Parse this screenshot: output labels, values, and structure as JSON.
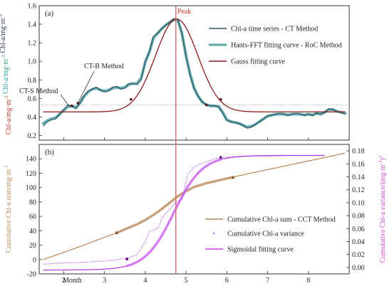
{
  "chart_data": [
    {
      "type": "line",
      "panel_label": "(a)",
      "ylabel_parts": [
        {
          "text": "Chl-a/mg·m",
          "sup": "-3",
          "color": "#c0392b"
        },
        {
          "text": " Chl-a/mg·m",
          "sup": "-3",
          "color": "#2a9d8f"
        },
        {
          "text": " Chl-a/mg·m",
          "sup": "-3",
          "color": "#2c3e50"
        }
      ],
      "xlim": [
        1.4,
        9.0
      ],
      "ylim": [
        0.15,
        1.6
      ],
      "yticks": [
        0.2,
        0.4,
        0.6,
        0.8,
        1.0,
        1.2,
        1.4,
        1.6
      ],
      "reference_line_y": 0.53,
      "peak_x": 4.75,
      "peak_label": "Peak",
      "series": [
        {
          "name": "Chl-a time series - CT Method",
          "color": "#2f4f5f",
          "x": [
            1.5,
            1.6,
            1.7,
            1.8,
            1.9,
            2.0,
            2.1,
            2.2,
            2.3,
            2.4,
            2.5,
            2.6,
            2.7,
            2.8,
            2.9,
            3.0,
            3.1,
            3.2,
            3.3,
            3.4,
            3.5,
            3.6,
            3.7,
            3.8,
            3.9,
            4.0,
            4.1,
            4.2,
            4.3,
            4.4,
            4.5,
            4.6,
            4.7,
            4.8,
            4.9,
            5.0,
            5.1,
            5.2,
            5.3,
            5.4,
            5.5,
            5.6,
            5.7,
            5.8,
            5.9,
            6.0,
            6.1,
            6.2,
            6.3,
            6.4,
            6.5,
            6.6,
            6.7,
            6.8,
            6.9,
            7.0,
            7.1,
            7.2,
            7.3,
            7.4,
            7.5,
            7.6,
            7.7,
            7.8,
            7.9,
            8.0,
            8.1,
            8.2,
            8.3,
            8.4,
            8.5,
            8.6,
            8.7,
            8.8,
            8.9
          ],
          "y": [
            0.3,
            0.35,
            0.37,
            0.38,
            0.43,
            0.48,
            0.53,
            0.52,
            0.49,
            0.55,
            0.63,
            0.68,
            0.7,
            0.72,
            0.69,
            0.67,
            0.68,
            0.72,
            0.73,
            0.7,
            0.71,
            0.76,
            0.76,
            0.75,
            0.8,
            1.0,
            1.1,
            1.27,
            1.3,
            1.35,
            1.39,
            1.42,
            1.46,
            1.45,
            1.3,
            1.05,
            0.85,
            0.7,
            0.62,
            0.56,
            0.53,
            0.52,
            0.52,
            0.51,
            0.44,
            0.36,
            0.35,
            0.34,
            0.33,
            0.31,
            0.28,
            0.29,
            0.32,
            0.35,
            0.38,
            0.41,
            0.42,
            0.43,
            0.44,
            0.43,
            0.42,
            0.43,
            0.44,
            0.43,
            0.42,
            0.43,
            0.42,
            0.44,
            0.43,
            0.45,
            0.49,
            0.48,
            0.46,
            0.45,
            0.43
          ]
        },
        {
          "name": "Hants-FFT fitting curve - RoC Method",
          "color": "#5aa6a8",
          "x": [
            1.5,
            1.6,
            1.7,
            1.8,
            1.9,
            2.0,
            2.1,
            2.2,
            2.3,
            2.4,
            2.5,
            2.6,
            2.7,
            2.8,
            2.9,
            3.0,
            3.1,
            3.2,
            3.3,
            3.4,
            3.5,
            3.6,
            3.7,
            3.8,
            3.9,
            4.0,
            4.1,
            4.2,
            4.3,
            4.4,
            4.5,
            4.6,
            4.7,
            4.8,
            4.9,
            5.0,
            5.1,
            5.2,
            5.3,
            5.4,
            5.5,
            5.6,
            5.7,
            5.8,
            5.9,
            6.0,
            6.1,
            6.2,
            6.3,
            6.4,
            6.5,
            6.6,
            6.7,
            6.8,
            6.9,
            7.0,
            7.1,
            7.2,
            7.3,
            7.4,
            7.5,
            7.6,
            7.7,
            7.8,
            7.9,
            8.0,
            8.1,
            8.2,
            8.3,
            8.4,
            8.5,
            8.6,
            8.7,
            8.8,
            8.9
          ],
          "y": [
            0.33,
            0.36,
            0.38,
            0.39,
            0.43,
            0.47,
            0.51,
            0.52,
            0.5,
            0.55,
            0.62,
            0.67,
            0.7,
            0.71,
            0.69,
            0.68,
            0.69,
            0.71,
            0.72,
            0.71,
            0.72,
            0.75,
            0.76,
            0.76,
            0.82,
            0.99,
            1.1,
            1.25,
            1.3,
            1.35,
            1.39,
            1.42,
            1.45,
            1.44,
            1.3,
            1.06,
            0.86,
            0.71,
            0.62,
            0.56,
            0.53,
            0.52,
            0.52,
            0.51,
            0.45,
            0.37,
            0.35,
            0.34,
            0.33,
            0.31,
            0.29,
            0.3,
            0.32,
            0.35,
            0.38,
            0.41,
            0.42,
            0.43,
            0.43,
            0.43,
            0.42,
            0.43,
            0.43,
            0.43,
            0.42,
            0.43,
            0.42,
            0.44,
            0.43,
            0.45,
            0.48,
            0.48,
            0.46,
            0.45,
            0.44
          ]
        },
        {
          "name": "Gauss fitting curve",
          "color": "#8b1a1a",
          "gauss": {
            "baseline": 0.455,
            "amplitude": 1.0,
            "mean": 4.77,
            "sigma": 0.52,
            "from": 1.5,
            "to": 8.9
          }
        }
      ],
      "markers": [
        {
          "label": "CT-S Method",
          "x": 2.2,
          "y": 0.52
        },
        {
          "label": "CT-B Method",
          "x": 2.35,
          "y": 0.55
        },
        {
          "label": "",
          "x": 3.65,
          "y": 0.59
        },
        {
          "label": "",
          "x": 5.85,
          "y": 0.59
        },
        {
          "label": "",
          "x": 5.5,
          "y": 0.53
        }
      ]
    },
    {
      "type": "line",
      "panel_label": "(b)",
      "xlabel": "Month",
      "ylabel_left_parts": [
        {
          "text": "Cumulative Chl-a sum/mg·m",
          "sup": "-3",
          "color": "#c08a5a"
        }
      ],
      "ylabel_right_parts": [
        {
          "text": "Cumulative Chl-a variance/(mg·m",
          "sup": "-3",
          "tail": ")",
          "sup2": "2",
          "color": "#d24ad2"
        }
      ],
      "xlim": [
        1.4,
        9.0
      ],
      "xticks": [
        2,
        3,
        4,
        5,
        6,
        7,
        8
      ],
      "ylim_left": [
        -20,
        160
      ],
      "yticks_left": [
        -20,
        0,
        20,
        40,
        60,
        80,
        100,
        120,
        140
      ],
      "ylim_right": [
        -0.01,
        0.19
      ],
      "yticks_right": [
        0.0,
        0.02,
        0.04,
        0.06,
        0.08,
        0.1,
        0.12,
        0.14,
        0.16,
        0.18
      ],
      "series": [
        {
          "name": "Cumulative Chl-a  sum - CCT Method",
          "color": "#b88658",
          "axis": "left",
          "x": [
            1.5,
            2.0,
            2.5,
            3.0,
            3.3,
            3.5,
            3.8,
            4.0,
            4.2,
            4.4,
            4.6,
            4.8,
            5.0,
            5.2,
            5.5,
            5.8,
            6.1,
            6.5,
            7.0,
            7.5,
            8.0,
            8.5,
            8.9
          ],
          "y": [
            0,
            10,
            20,
            31,
            37,
            42,
            49,
            55,
            62,
            70,
            79,
            88,
            95,
            101,
            106,
            110,
            114,
            119,
            125,
            131,
            137,
            143,
            148
          ]
        },
        {
          "name": "Cumulative Chl-a  variance",
          "color": "#8a2be2",
          "axis": "right",
          "dotted": true,
          "x": [
            1.5,
            2.0,
            2.5,
            3.0,
            3.3,
            3.6,
            3.8,
            4.0,
            4.1,
            4.2,
            4.3,
            4.45,
            4.6,
            4.75,
            4.9,
            5.05,
            5.2,
            5.35,
            5.5,
            5.7,
            5.9,
            6.2,
            6.6,
            7.0,
            7.5,
            8.0,
            8.4
          ],
          "y": [
            0.005,
            0.007,
            0.008,
            0.01,
            0.012,
            0.015,
            0.02,
            0.04,
            0.055,
            0.058,
            0.06,
            0.08,
            0.09,
            0.1,
            0.105,
            0.145,
            0.155,
            0.16,
            0.163,
            0.168,
            0.17,
            0.171,
            0.172,
            0.172,
            0.173,
            0.173,
            0.173
          ]
        },
        {
          "name": "Sigmoidal fitting curve",
          "color": "#c040e0",
          "axis": "right",
          "sigmoid": {
            "lower": -0.004,
            "upper": 0.173,
            "mid": 4.7,
            "scale": 0.35,
            "from": 1.5,
            "to": 8.4
          }
        }
      ],
      "markers": [
        {
          "axis": "left",
          "x": 3.3,
          "y": 37
        },
        {
          "axis": "left",
          "x": 6.15,
          "y": 114
        },
        {
          "axis": "right",
          "x": 3.55,
          "y": 0.013
        },
        {
          "axis": "right",
          "x": 5.85,
          "y": 0.17
        }
      ]
    }
  ]
}
